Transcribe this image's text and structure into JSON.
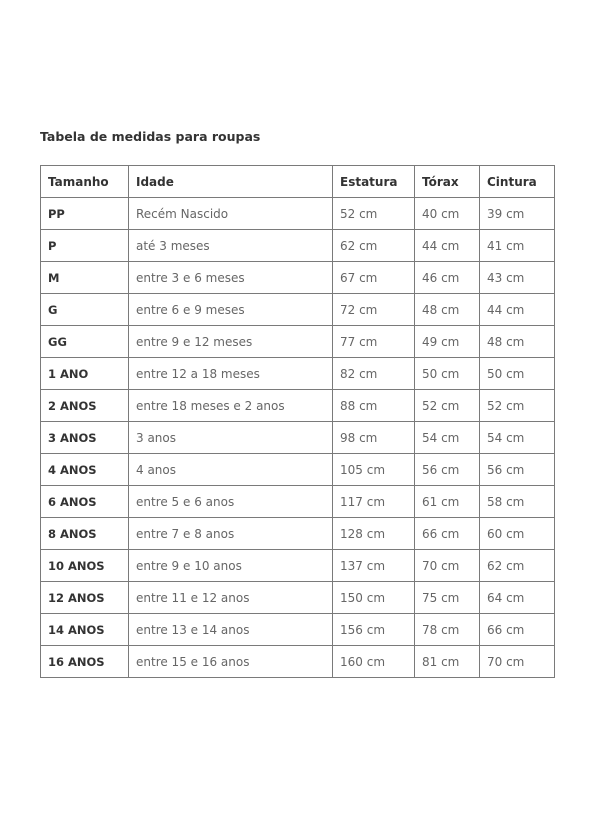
{
  "title": "Tabela de medidas para roupas",
  "table": {
    "headers": [
      "Tamanho",
      "Idade",
      "Estatura",
      "Tórax",
      "Cintura"
    ],
    "rows": [
      [
        "PP",
        "Recém Nascido",
        "52 cm",
        "40 cm",
        "39 cm"
      ],
      [
        "P",
        "até 3 meses",
        "62 cm",
        "44 cm",
        "41 cm"
      ],
      [
        "M",
        "entre 3 e 6 meses",
        "67 cm",
        "46 cm",
        "43 cm"
      ],
      [
        "G",
        "entre 6 e 9 meses",
        "72 cm",
        "48 cm",
        "44 cm"
      ],
      [
        "GG",
        "entre 9 e 12 meses",
        "77 cm",
        "49 cm",
        "48 cm"
      ],
      [
        "1 ANO",
        "entre 12 a 18 meses",
        "82 cm",
        "50 cm",
        "50 cm"
      ],
      [
        "2 ANOS",
        "entre 18 meses e 2 anos",
        "88 cm",
        "52 cm",
        "52 cm"
      ],
      [
        "3 ANOS",
        "3 anos",
        "98 cm",
        "54 cm",
        "54 cm"
      ],
      [
        "4 ANOS",
        "4 anos",
        "105 cm",
        "56 cm",
        "56 cm"
      ],
      [
        "6 ANOS",
        "entre 5 e 6 anos",
        "117 cm",
        "61 cm",
        "58 cm"
      ],
      [
        "8 ANOS",
        "entre 7 e 8 anos",
        "128 cm",
        "66 cm",
        "60 cm"
      ],
      [
        "10 ANOS",
        "entre 9 e 10 anos",
        "137 cm",
        "70 cm",
        "62 cm"
      ],
      [
        "12 ANOS",
        "entre 11 e 12 anos",
        "150 cm",
        "75 cm",
        "64 cm"
      ],
      [
        "14 ANOS",
        "entre 13 e 14 anos",
        "156 cm",
        "78 cm",
        "66 cm"
      ],
      [
        "16 ANOS",
        "entre 15 e 16 anos",
        "160 cm",
        "81 cm",
        "70 cm"
      ]
    ]
  }
}
